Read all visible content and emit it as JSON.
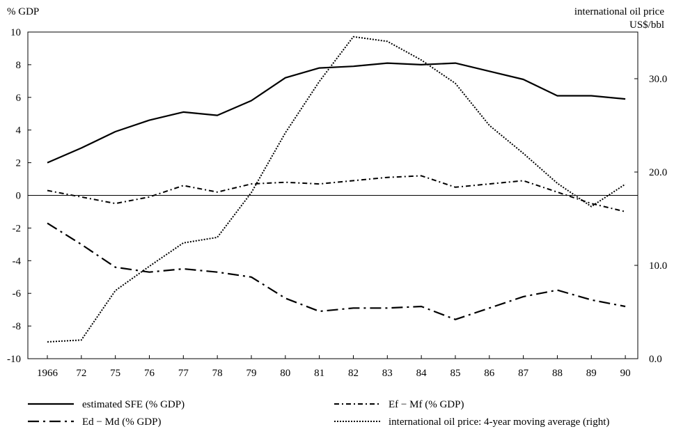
{
  "chart_data": {
    "type": "line",
    "title": "",
    "left_axis_label": "% GDP",
    "right_axis_label_line1": "international oil price",
    "right_axis_label_line2": "US$/bbl",
    "categories": [
      "1966",
      "72",
      "75",
      "76",
      "77",
      "78",
      "79",
      "80",
      "81",
      "82",
      "83",
      "84",
      "85",
      "86",
      "87",
      "88",
      "89",
      "90"
    ],
    "left_ylim": [
      -10,
      10
    ],
    "left_ticks": [
      -10,
      -8,
      -6,
      -4,
      -2,
      0,
      2,
      4,
      6,
      8,
      10
    ],
    "right_ylim": [
      0,
      35
    ],
    "right_ticks": [
      0,
      10,
      20,
      30
    ],
    "right_tick_labels": [
      "0.0",
      "10.0",
      "20.0",
      "30.0"
    ],
    "zero_line": true,
    "grid": false,
    "legend_placement": "bottom",
    "series": [
      {
        "name": "estimated SFE (% GDP)",
        "axis": "left",
        "style": "solid",
        "values": [
          2.0,
          2.9,
          3.9,
          4.6,
          5.1,
          4.9,
          5.8,
          7.2,
          7.8,
          7.9,
          8.1,
          8.0,
          8.1,
          7.6,
          7.1,
          6.1,
          6.1,
          5.9
        ]
      },
      {
        "name": "Ef − Mf (% GDP)",
        "axis": "left",
        "style": "dash-dot",
        "values": [
          0.3,
          -0.1,
          -0.5,
          -0.1,
          0.6,
          0.2,
          0.7,
          0.8,
          0.7,
          0.9,
          1.1,
          1.2,
          0.5,
          0.7,
          0.9,
          0.2,
          -0.5,
          -1.0
        ]
      },
      {
        "name": "Ed − Md (% GDP)",
        "axis": "left",
        "style": "long-dash-dot",
        "values": [
          -1.7,
          -3.0,
          -4.4,
          -4.7,
          -4.5,
          -4.7,
          -5.0,
          -6.3,
          -7.1,
          -6.9,
          -6.9,
          -6.8,
          -7.6,
          -6.9,
          -6.2,
          -5.8,
          -6.4,
          -6.8
        ]
      },
      {
        "name": "international oil price: 4-year moving average (right)",
        "axis": "right",
        "style": "dotted",
        "values": [
          1.8,
          2.0,
          7.3,
          9.9,
          12.4,
          13.0,
          17.8,
          24.2,
          29.7,
          34.5,
          34.0,
          32.0,
          29.5,
          25.0,
          22.0,
          18.8,
          16.3,
          18.7
        ]
      }
    ]
  }
}
